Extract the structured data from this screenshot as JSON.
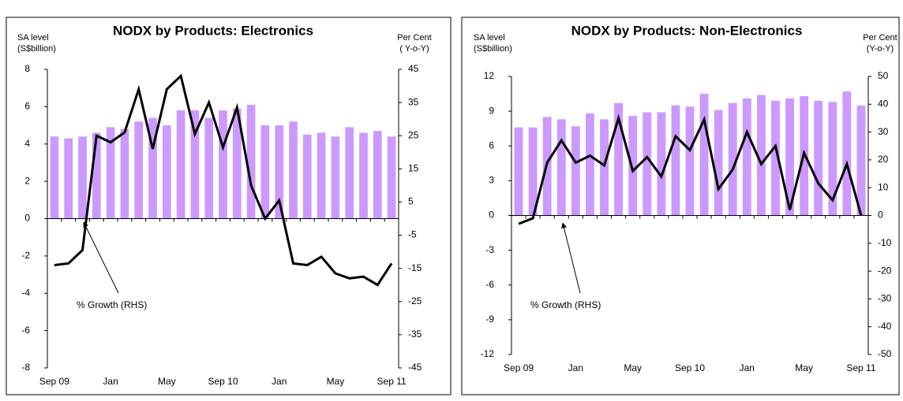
{
  "chart_data": [
    {
      "type": "bar-line",
      "title": "NODX by Products: Electronics",
      "y_label": [
        "SA level",
        "(S$billion)"
      ],
      "y2_label": [
        "Per Cent",
        "( Y-o-Y)"
      ],
      "annotation": "% Growth (RHS)",
      "categories": [
        "Sep 09",
        null,
        null,
        null,
        "Jan",
        null,
        null,
        null,
        "May",
        null,
        null,
        null,
        "Sep 10",
        null,
        null,
        null,
        "Jan",
        null,
        null,
        null,
        "May",
        null,
        null,
        null,
        "Sep 11"
      ],
      "series": [
        {
          "type": "bar",
          "color": "#cc99ff",
          "values": [
            4.4,
            4.3,
            4.4,
            4.6,
            4.9,
            4.8,
            5.2,
            5.4,
            5.0,
            5.8,
            5.8,
            5.4,
            5.8,
            5.9,
            6.1,
            5.0,
            5.0,
            5.2,
            4.5,
            4.6,
            4.4,
            4.9,
            4.6,
            4.7,
            4.4
          ]
        },
        {
          "type": "line",
          "color": "#000000",
          "axis": "y2",
          "values": [
            -14,
            -13.5,
            -9.5,
            25,
            23,
            26,
            39,
            21,
            39,
            43,
            25.5,
            35,
            21.5,
            33.5,
            10,
            0,
            5.5,
            -13.5,
            -14,
            -11.5,
            -16.5,
            -18,
            -17.5,
            -20,
            -13.5
          ]
        }
      ],
      "ylim": [
        -8,
        8
      ],
      "yticks": [
        -8,
        -6,
        -4,
        -2,
        0,
        2,
        4,
        6,
        8
      ],
      "y2lim": [
        -45,
        45
      ],
      "y2ticks": [
        -45,
        -35,
        -25,
        -15,
        -5,
        5,
        15,
        25,
        35,
        45
      ]
    },
    {
      "type": "bar-line",
      "title": "NODX by Products: Non-Electronics",
      "y_label": [
        "SA level",
        "(S$billion)"
      ],
      "y2_label": [
        "Per Cent",
        "(Y-o-Y)"
      ],
      "annotation": "% Growth (RHS)",
      "categories": [
        "Sep 09",
        null,
        null,
        null,
        "Jan",
        null,
        null,
        null,
        "May",
        null,
        null,
        null,
        "Sep 10",
        null,
        null,
        null,
        "Jan",
        null,
        null,
        null,
        "May",
        null,
        null,
        null,
        "Sep 11"
      ],
      "series": [
        {
          "type": "bar",
          "color": "#cc99ff",
          "values": [
            7.6,
            7.6,
            8.5,
            8.3,
            7.7,
            8.8,
            8.3,
            9.7,
            8.6,
            8.9,
            8.9,
            9.5,
            9.4,
            10.5,
            9.1,
            9.7,
            10.1,
            10.4,
            9.9,
            10.1,
            10.3,
            9.9,
            9.8,
            10.7,
            9.5
          ]
        },
        {
          "type": "line",
          "color": "#000000",
          "axis": "y2",
          "values": [
            -3,
            -1,
            19,
            27,
            19,
            21.5,
            18,
            35,
            16,
            21,
            14,
            28.5,
            23.5,
            34.5,
            9.5,
            16.5,
            30,
            18.5,
            25,
            2,
            22.5,
            11.5,
            5.5,
            18.5,
            0
          ]
        }
      ],
      "ylim": [
        -12,
        12
      ],
      "yticks": [
        -12,
        -9,
        -6,
        -3,
        0,
        3,
        6,
        9,
        12
      ],
      "y2lim": [
        -50,
        50
      ],
      "y2ticks": [
        -50,
        -40,
        -30,
        -20,
        -10,
        0,
        10,
        20,
        30,
        40,
        50
      ]
    }
  ]
}
